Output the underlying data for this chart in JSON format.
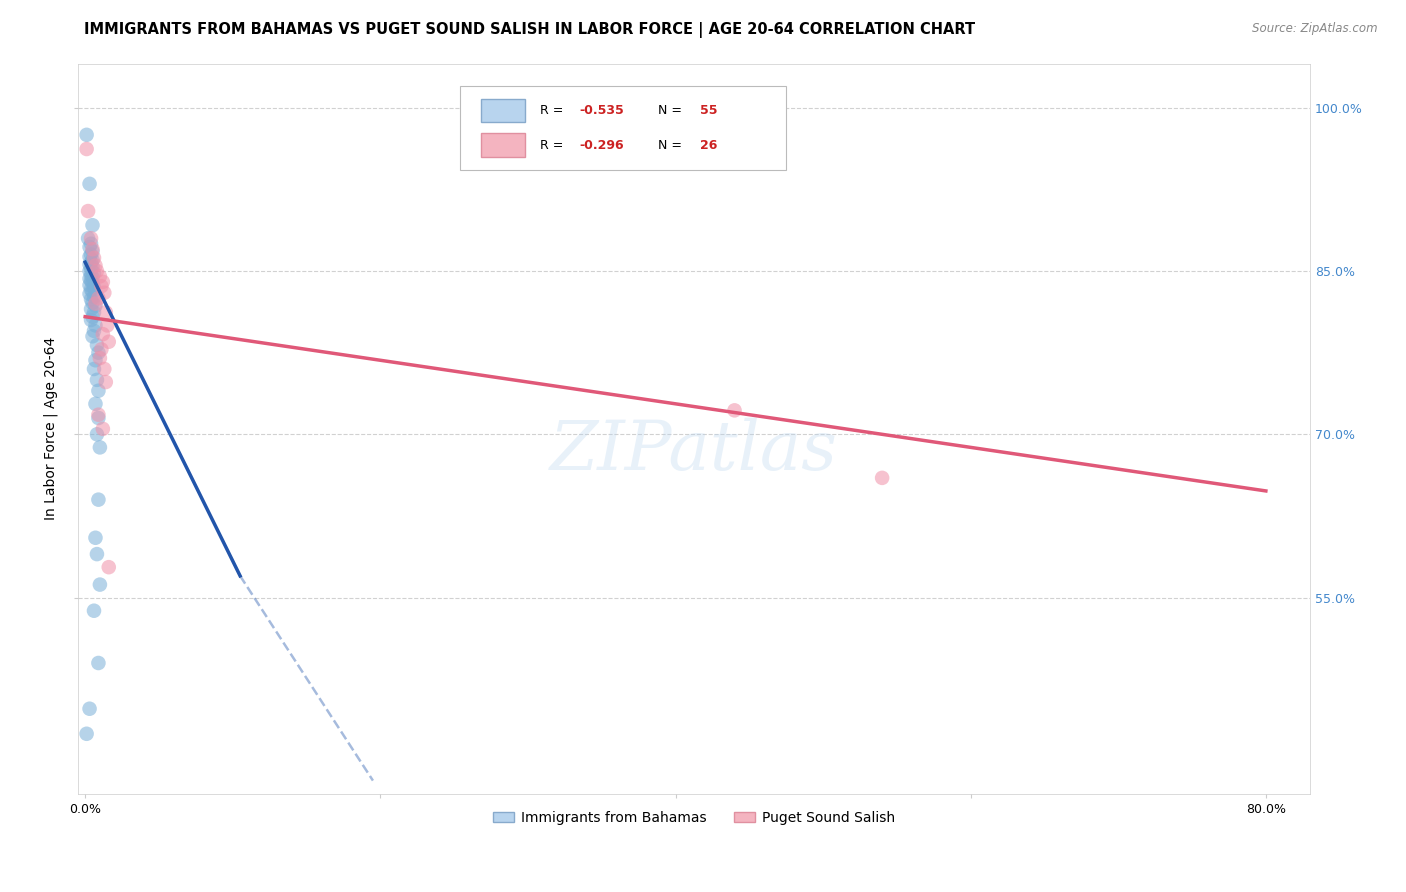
{
  "title": "IMMIGRANTS FROM BAHAMAS VS PUGET SOUND SALISH IN LABOR FORCE | AGE 20-64 CORRELATION CHART",
  "source": "Source: ZipAtlas.com",
  "ylabel": "In Labor Force | Age 20-64",
  "ylim": [
    0.37,
    1.04
  ],
  "xlim": [
    -0.005,
    0.83
  ],
  "background_color": "#ffffff",
  "grid_color": "#cccccc",
  "blue_color": "#7ab0d8",
  "pink_color": "#f090a8",
  "blue_line_color": "#2255aa",
  "pink_line_color": "#e05878",
  "blue_scatter": [
    [
      0.001,
      0.975
    ],
    [
      0.003,
      0.93
    ],
    [
      0.005,
      0.892
    ],
    [
      0.002,
      0.88
    ],
    [
      0.004,
      0.875
    ],
    [
      0.003,
      0.872
    ],
    [
      0.005,
      0.868
    ],
    [
      0.004,
      0.865
    ],
    [
      0.003,
      0.863
    ],
    [
      0.005,
      0.86
    ],
    [
      0.004,
      0.858
    ],
    [
      0.003,
      0.856
    ],
    [
      0.005,
      0.854
    ],
    [
      0.004,
      0.852
    ],
    [
      0.003,
      0.85
    ],
    [
      0.006,
      0.848
    ],
    [
      0.004,
      0.846
    ],
    [
      0.005,
      0.844
    ],
    [
      0.003,
      0.843
    ],
    [
      0.004,
      0.841
    ],
    [
      0.005,
      0.839
    ],
    [
      0.003,
      0.837
    ],
    [
      0.006,
      0.835
    ],
    [
      0.004,
      0.833
    ],
    [
      0.005,
      0.831
    ],
    [
      0.003,
      0.829
    ],
    [
      0.006,
      0.826
    ],
    [
      0.004,
      0.824
    ],
    [
      0.005,
      0.821
    ],
    [
      0.007,
      0.818
    ],
    [
      0.004,
      0.815
    ],
    [
      0.006,
      0.812
    ],
    [
      0.005,
      0.808
    ],
    [
      0.004,
      0.805
    ],
    [
      0.007,
      0.8
    ],
    [
      0.006,
      0.795
    ],
    [
      0.005,
      0.79
    ],
    [
      0.008,
      0.782
    ],
    [
      0.009,
      0.775
    ],
    [
      0.007,
      0.768
    ],
    [
      0.006,
      0.76
    ],
    [
      0.008,
      0.75
    ],
    [
      0.009,
      0.74
    ],
    [
      0.007,
      0.728
    ],
    [
      0.009,
      0.715
    ],
    [
      0.008,
      0.7
    ],
    [
      0.01,
      0.688
    ],
    [
      0.009,
      0.64
    ],
    [
      0.007,
      0.605
    ],
    [
      0.008,
      0.59
    ],
    [
      0.01,
      0.562
    ],
    [
      0.006,
      0.538
    ],
    [
      0.009,
      0.49
    ],
    [
      0.003,
      0.448
    ],
    [
      0.001,
      0.425
    ]
  ],
  "pink_scatter": [
    [
      0.001,
      0.962
    ],
    [
      0.002,
      0.905
    ],
    [
      0.004,
      0.88
    ],
    [
      0.005,
      0.87
    ],
    [
      0.006,
      0.862
    ],
    [
      0.007,
      0.855
    ],
    [
      0.008,
      0.85
    ],
    [
      0.01,
      0.845
    ],
    [
      0.012,
      0.84
    ],
    [
      0.011,
      0.836
    ],
    [
      0.013,
      0.83
    ],
    [
      0.009,
      0.825
    ],
    [
      0.007,
      0.82
    ],
    [
      0.014,
      0.812
    ],
    [
      0.015,
      0.8
    ],
    [
      0.012,
      0.792
    ],
    [
      0.016,
      0.785
    ],
    [
      0.011,
      0.778
    ],
    [
      0.01,
      0.77
    ],
    [
      0.013,
      0.76
    ],
    [
      0.014,
      0.748
    ],
    [
      0.009,
      0.718
    ],
    [
      0.012,
      0.705
    ],
    [
      0.016,
      0.578
    ],
    [
      0.44,
      0.722
    ],
    [
      0.54,
      0.66
    ]
  ],
  "blue_line": {
    "x": [
      0.0,
      0.105
    ],
    "y": [
      0.858,
      0.57
    ]
  },
  "blue_dashed": {
    "x": [
      0.105,
      0.195
    ],
    "y": [
      0.57,
      0.382
    ]
  },
  "pink_line": {
    "x": [
      0.0,
      0.8
    ],
    "y": [
      0.808,
      0.648
    ]
  },
  "right_ytick_labels": [
    "55.0%",
    "70.0%",
    "85.0%",
    "100.0%"
  ],
  "right_ytick_positions": [
    0.55,
    0.7,
    0.85,
    1.0
  ],
  "right_tick_color": "#4488cc",
  "xtick_positions": [
    0.0,
    0.2,
    0.4,
    0.6,
    0.8
  ],
  "xtick_labels": [
    "0.0%",
    "",
    "",
    "",
    "80.0%"
  ],
  "legend_blue_r": "-0.535",
  "legend_blue_n": "55",
  "legend_pink_r": "-0.296",
  "legend_pink_n": "26",
  "legend_label_blue": "Immigrants from Bahamas",
  "legend_label_pink": "Puget Sound Salish"
}
